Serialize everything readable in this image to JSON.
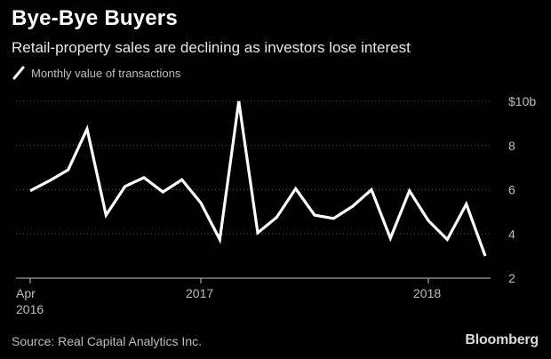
{
  "title": "Bye-Bye Buyers",
  "subtitle": "Retail-property sales are declining as investors lose interest",
  "legend_label": "Monthly value of transactions",
  "source": "Source: Real Capital Analytics Inc.",
  "brand": "Bloomberg",
  "colors": {
    "background": "#000000",
    "line": "#ffffff",
    "grid": "#5a5a5a",
    "muted_text": "#bdbdbd"
  },
  "chart_data": {
    "type": "line",
    "title": "Bye-Bye Buyers",
    "subtitle": "Retail-property sales are declining as investors lose interest",
    "xlabel": "",
    "ylabel": "",
    "ylim": [
      2,
      10
    ],
    "yticks": [
      {
        "value": 10,
        "label": "$10b"
      },
      {
        "value": 8,
        "label": "8"
      },
      {
        "value": 6,
        "label": "6"
      },
      {
        "value": 4,
        "label": "4"
      },
      {
        "value": 2,
        "label": "2"
      }
    ],
    "xticks": [
      {
        "label": "Apr",
        "sublabel": "2016",
        "date": "2016-04"
      },
      {
        "label": "2017",
        "sublabel": "",
        "date": "2017-01"
      },
      {
        "label": "2018",
        "sublabel": "",
        "date": "2018-01"
      }
    ],
    "grid": true,
    "legend_position": "top-left",
    "series": [
      {
        "name": "Monthly value of transactions",
        "x": [
          "2016-04",
          "2016-05",
          "2016-06",
          "2016-07",
          "2016-08",
          "2016-09",
          "2016-10",
          "2016-11",
          "2016-12",
          "2017-01",
          "2017-02",
          "2017-03",
          "2017-04",
          "2017-05",
          "2017-06",
          "2017-07",
          "2017-08",
          "2017-09",
          "2017-10",
          "2017-11",
          "2017-12",
          "2018-01",
          "2018-02",
          "2018-03",
          "2018-04"
        ],
        "values": [
          5.95,
          6.4,
          6.9,
          8.75,
          4.85,
          6.15,
          6.55,
          5.9,
          6.45,
          5.4,
          3.75,
          10.0,
          4.05,
          4.75,
          6.05,
          4.85,
          4.7,
          5.25,
          6.0,
          3.8,
          5.95,
          4.6,
          3.75,
          5.35,
          3.0
        ]
      }
    ]
  }
}
